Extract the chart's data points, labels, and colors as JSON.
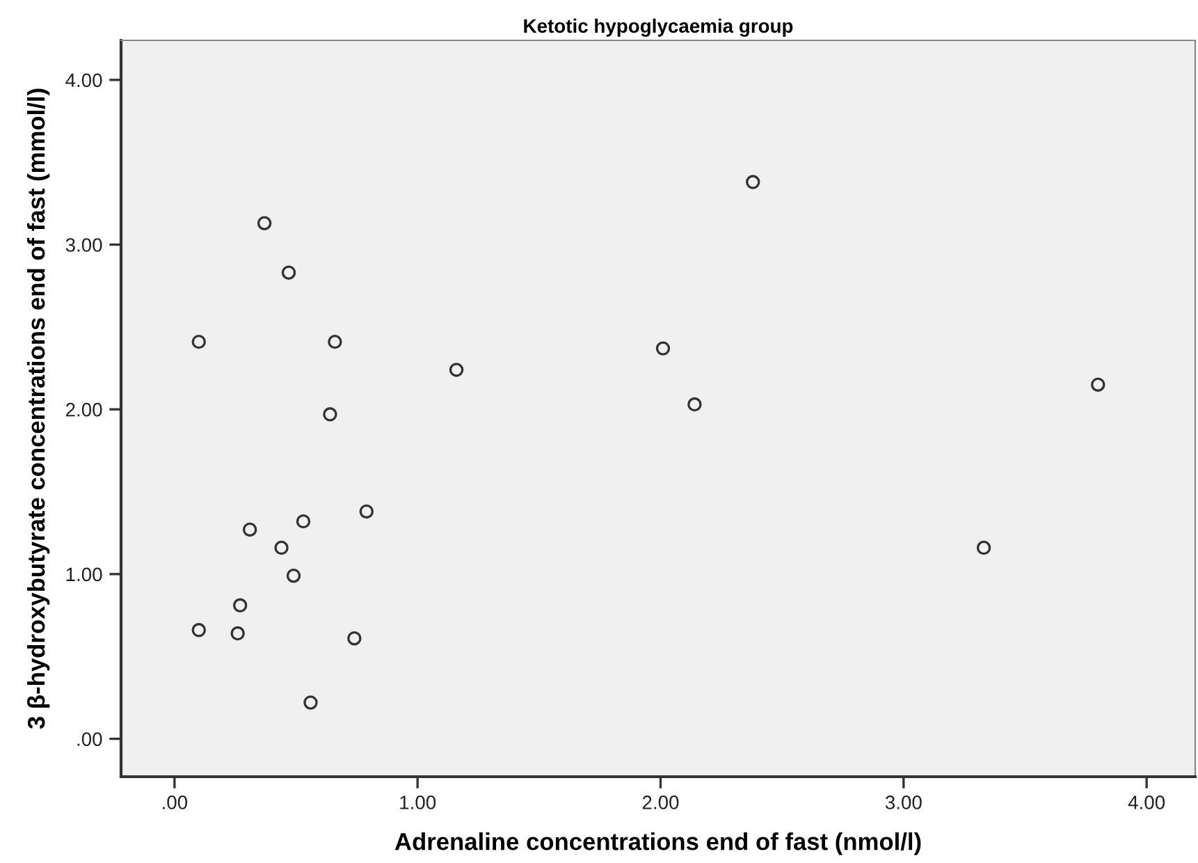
{
  "chart_data": {
    "type": "scatter",
    "title": "Ketotic hypoglycaemia group",
    "xlabel": "Adrenaline concentrations end of fast (nmol/l)",
    "ylabel": "3 β-hydroxybutyrate concentrations end of fast (mmol/l)",
    "series": [
      {
        "color": "#333333",
        "x": [
          0.37,
          0.47,
          0.1,
          0.66,
          1.16,
          0.64,
          2.38,
          2.01,
          2.14,
          3.8,
          3.33,
          0.1,
          0.27,
          0.26,
          0.31,
          0.44,
          0.49,
          0.53,
          0.79,
          0.74,
          0.56
        ],
        "values": [
          3.13,
          2.83,
          2.41,
          2.41,
          2.24,
          1.97,
          3.38,
          2.37,
          2.03,
          2.15,
          1.16,
          0.66,
          0.81,
          0.64,
          1.27,
          1.16,
          0.99,
          1.32,
          1.38,
          0.61,
          0.22
        ]
      }
    ],
    "xlim": [
      -0.22,
      4.2
    ],
    "ylim": [
      -0.23,
      4.24
    ],
    "xticks": [
      {
        "value": 0,
        "label": ".00"
      },
      {
        "value": 1,
        "label": "1.00"
      },
      {
        "value": 2,
        "label": "2.00"
      },
      {
        "value": 3,
        "label": "3.00"
      },
      {
        "value": 4,
        "label": "4.00"
      }
    ],
    "yticks": [
      {
        "value": 0,
        "label": ".00"
      },
      {
        "value": 1,
        "label": "1.00"
      },
      {
        "value": 2,
        "label": "2.00"
      },
      {
        "value": 3,
        "label": "3.00"
      },
      {
        "value": 4,
        "label": "4.00"
      }
    ],
    "grid": false,
    "marker": "circle"
  }
}
